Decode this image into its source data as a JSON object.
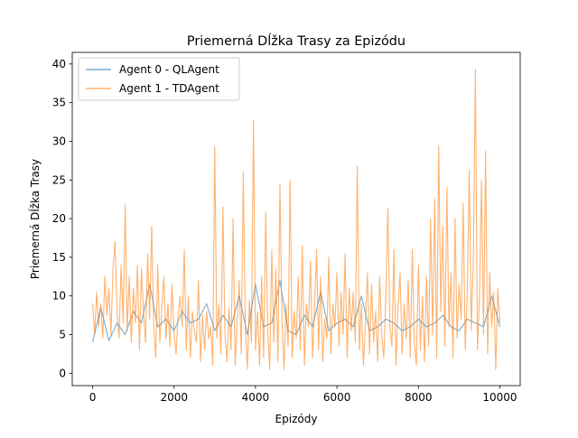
{
  "chart_data": {
    "type": "line",
    "title": "Priemerná Dĺžka Trasy za Epizódu",
    "xlabel": "Epizódy",
    "ylabel": "Priemerná Dĺžka Trasy",
    "xlim": [
      -500,
      10500
    ],
    "ylim": [
      -1.6,
      41.5
    ],
    "xticks": [
      0,
      2000,
      4000,
      6000,
      8000,
      10000
    ],
    "yticks": [
      0,
      5,
      10,
      15,
      20,
      25,
      30,
      35,
      40
    ],
    "xtick_labels": [
      "0",
      "2000",
      "4000",
      "6000",
      "8000",
      "10000"
    ],
    "ytick_labels": [
      "0",
      "5",
      "10",
      "15",
      "20",
      "25",
      "30",
      "35",
      "40"
    ],
    "grid": false,
    "legend_position": "top-left",
    "series": [
      {
        "name": "Agent 0 - QLAgent",
        "color": "#1f77b4",
        "alpha": 0.6,
        "x": [
          0,
          200,
          400,
          600,
          800,
          1000,
          1200,
          1400,
          1600,
          1800,
          2000,
          2200,
          2400,
          2600,
          2800,
          3000,
          3200,
          3400,
          3600,
          3800,
          4000,
          4200,
          4400,
          4600,
          4800,
          5000,
          5200,
          5400,
          5600,
          5800,
          6000,
          6200,
          6400,
          6600,
          6800,
          7000,
          7200,
          7400,
          7600,
          7800,
          8000,
          8200,
          8400,
          8600,
          8800,
          9000,
          9200,
          9400,
          9600,
          9800,
          10000
        ],
        "y": [
          4.0,
          8.5,
          4.2,
          6.5,
          5.0,
          8.0,
          6.5,
          11.5,
          6.0,
          7.0,
          5.5,
          8.0,
          6.5,
          7.0,
          9.0,
          5.5,
          7.5,
          6.0,
          10.0,
          5.0,
          11.5,
          6.0,
          6.5,
          12.0,
          5.5,
          5.0,
          7.5,
          6.0,
          10.5,
          5.5,
          6.5,
          7.0,
          6.0,
          10.0,
          5.5,
          6.0,
          7.0,
          6.5,
          5.5,
          6.0,
          7.0,
          6.0,
          6.5,
          7.5,
          6.0,
          5.5,
          7.0,
          6.5,
          6.0,
          10.0,
          6.0
        ]
      },
      {
        "name": "Agent 1 - TDAgent",
        "color": "#ff7f0e",
        "alpha": 0.6,
        "x": [
          0,
          50,
          100,
          150,
          200,
          250,
          300,
          350,
          400,
          450,
          500,
          550,
          600,
          650,
          700,
          750,
          800,
          850,
          900,
          950,
          1000,
          1050,
          1100,
          1150,
          1200,
          1250,
          1300,
          1350,
          1400,
          1450,
          1500,
          1550,
          1600,
          1650,
          1700,
          1750,
          1800,
          1850,
          1900,
          1950,
          2000,
          2050,
          2100,
          2150,
          2200,
          2250,
          2300,
          2350,
          2400,
          2450,
          2500,
          2550,
          2600,
          2650,
          2700,
          2750,
          2800,
          2850,
          2900,
          2950,
          3000,
          3050,
          3100,
          3150,
          3200,
          3250,
          3300,
          3350,
          3400,
          3450,
          3500,
          3550,
          3600,
          3650,
          3700,
          3750,
          3800,
          3850,
          3900,
          3950,
          4000,
          4050,
          4100,
          4150,
          4200,
          4250,
          4300,
          4350,
          4400,
          4450,
          4500,
          4550,
          4600,
          4650,
          4700,
          4750,
          4800,
          4850,
          4900,
          4950,
          5000,
          5050,
          5100,
          5150,
          5200,
          5250,
          5300,
          5350,
          5400,
          5450,
          5500,
          5550,
          5600,
          5650,
          5700,
          5750,
          5800,
          5850,
          5900,
          5950,
          6000,
          6050,
          6100,
          6150,
          6200,
          6250,
          6300,
          6350,
          6400,
          6450,
          6500,
          6550,
          6600,
          6650,
          6700,
          6750,
          6800,
          6850,
          6900,
          6950,
          7000,
          7050,
          7100,
          7150,
          7200,
          7250,
          7300,
          7350,
          7400,
          7450,
          7500,
          7550,
          7600,
          7650,
          7700,
          7750,
          7800,
          7850,
          7900,
          7950,
          8000,
          8050,
          8100,
          8150,
          8200,
          8250,
          8300,
          8350,
          8400,
          8450,
          8500,
          8550,
          8600,
          8650,
          8700,
          8750,
          8800,
          8850,
          8900,
          8950,
          9000,
          9050,
          9100,
          9150,
          9200,
          9250,
          9300,
          9350,
          9400,
          9450,
          9500,
          9550,
          9600,
          9650,
          9700,
          9750,
          9800,
          9850,
          9900,
          9950,
          10000
        ],
        "y": [
          9.0,
          5.0,
          10.5,
          6.0,
          9.0,
          4.5,
          12.5,
          7.5,
          11.0,
          5.0,
          13.5,
          17.0,
          8.0,
          4.5,
          14.0,
          6.5,
          21.8,
          5.5,
          12.5,
          4.0,
          11.0,
          6.5,
          14.0,
          3.0,
          13.5,
          8.0,
          4.0,
          15.5,
          7.0,
          19.0,
          6.5,
          2.0,
          14.0,
          4.0,
          8.5,
          12.5,
          4.5,
          9.0,
          3.5,
          11.5,
          5.0,
          2.5,
          7.5,
          10.0,
          6.0,
          16.0,
          3.0,
          10.0,
          2.0,
          8.0,
          5.5,
          4.0,
          12.0,
          1.5,
          7.5,
          3.0,
          8.0,
          4.5,
          6.0,
          1.0,
          29.3,
          4.5,
          9.0,
          2.5,
          21.5,
          5.0,
          1.5,
          8.5,
          3.0,
          20.0,
          1.0,
          7.0,
          12.0,
          2.5,
          26.0,
          6.0,
          0.5,
          9.5,
          4.0,
          32.7,
          3.0,
          8.0,
          1.0,
          12.5,
          2.0,
          20.8,
          5.5,
          0.5,
          16.0,
          4.0,
          13.5,
          1.5,
          24.5,
          7.0,
          0.5,
          9.0,
          3.5,
          25.0,
          2.0,
          8.0,
          4.5,
          12.5,
          3.0,
          16.5,
          1.0,
          9.0,
          6.0,
          14.5,
          2.0,
          8.5,
          16.0,
          3.0,
          12.5,
          1.5,
          7.0,
          4.5,
          15.0,
          2.5,
          9.0,
          6.0,
          13.0,
          3.5,
          10.5,
          5.0,
          15.5,
          2.0,
          11.0,
          5.5,
          10.5,
          4.0,
          26.8,
          3.0,
          9.0,
          1.0,
          6.5,
          13.0,
          2.5,
          11.5,
          4.0,
          8.0,
          1.5,
          12.5,
          5.0,
          2.0,
          10.0,
          21.3,
          6.0,
          3.5,
          16.0,
          1.0,
          8.5,
          13.0,
          2.5,
          9.0,
          4.5,
          12.0,
          2.0,
          16.0,
          4.0,
          1.0,
          14.0,
          3.0,
          10.0,
          1.5,
          12.5,
          3.5,
          20.0,
          5.0,
          22.5,
          2.0,
          29.4,
          8.0,
          19.0,
          3.5,
          24.0,
          6.0,
          13.0,
          2.0,
          20.0,
          4.5,
          11.5,
          7.0,
          22.0,
          3.0,
          10.5,
          26.3,
          5.5,
          15.0,
          39.3,
          3.0,
          10.0,
          25.0,
          5.0,
          28.7,
          2.5,
          13.0,
          6.0,
          10.5,
          0.5,
          11.0,
          6.5
        ]
      }
    ]
  }
}
